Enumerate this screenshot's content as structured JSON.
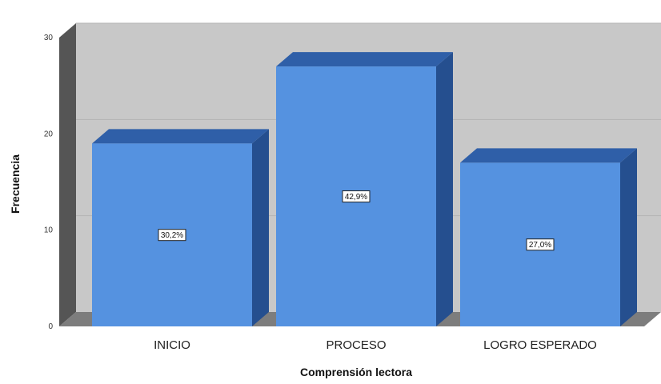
{
  "chart_data": {
    "type": "bar",
    "style": "3d",
    "categories": [
      "INICIO",
      "PROCESO",
      "LOGRO ESPERADO"
    ],
    "values": [
      19,
      27,
      17
    ],
    "data_labels": [
      "30,2%",
      "42,9%",
      "27,0%"
    ],
    "xlabel": "Comprensión lectora",
    "ylabel": "Frecuencia",
    "yticks": [
      0,
      10,
      20,
      30
    ],
    "ylim": [
      0,
      30
    ],
    "grid": true,
    "legend": "none",
    "colors": {
      "bar_front": "#5592e0",
      "bar_top": "#2f5fa8",
      "bar_side": "#254f8f",
      "wall": "#c8c8c8",
      "wall_side": "#555555",
      "floor": "#7d7d7d",
      "grid": "#b4b4b4"
    }
  }
}
